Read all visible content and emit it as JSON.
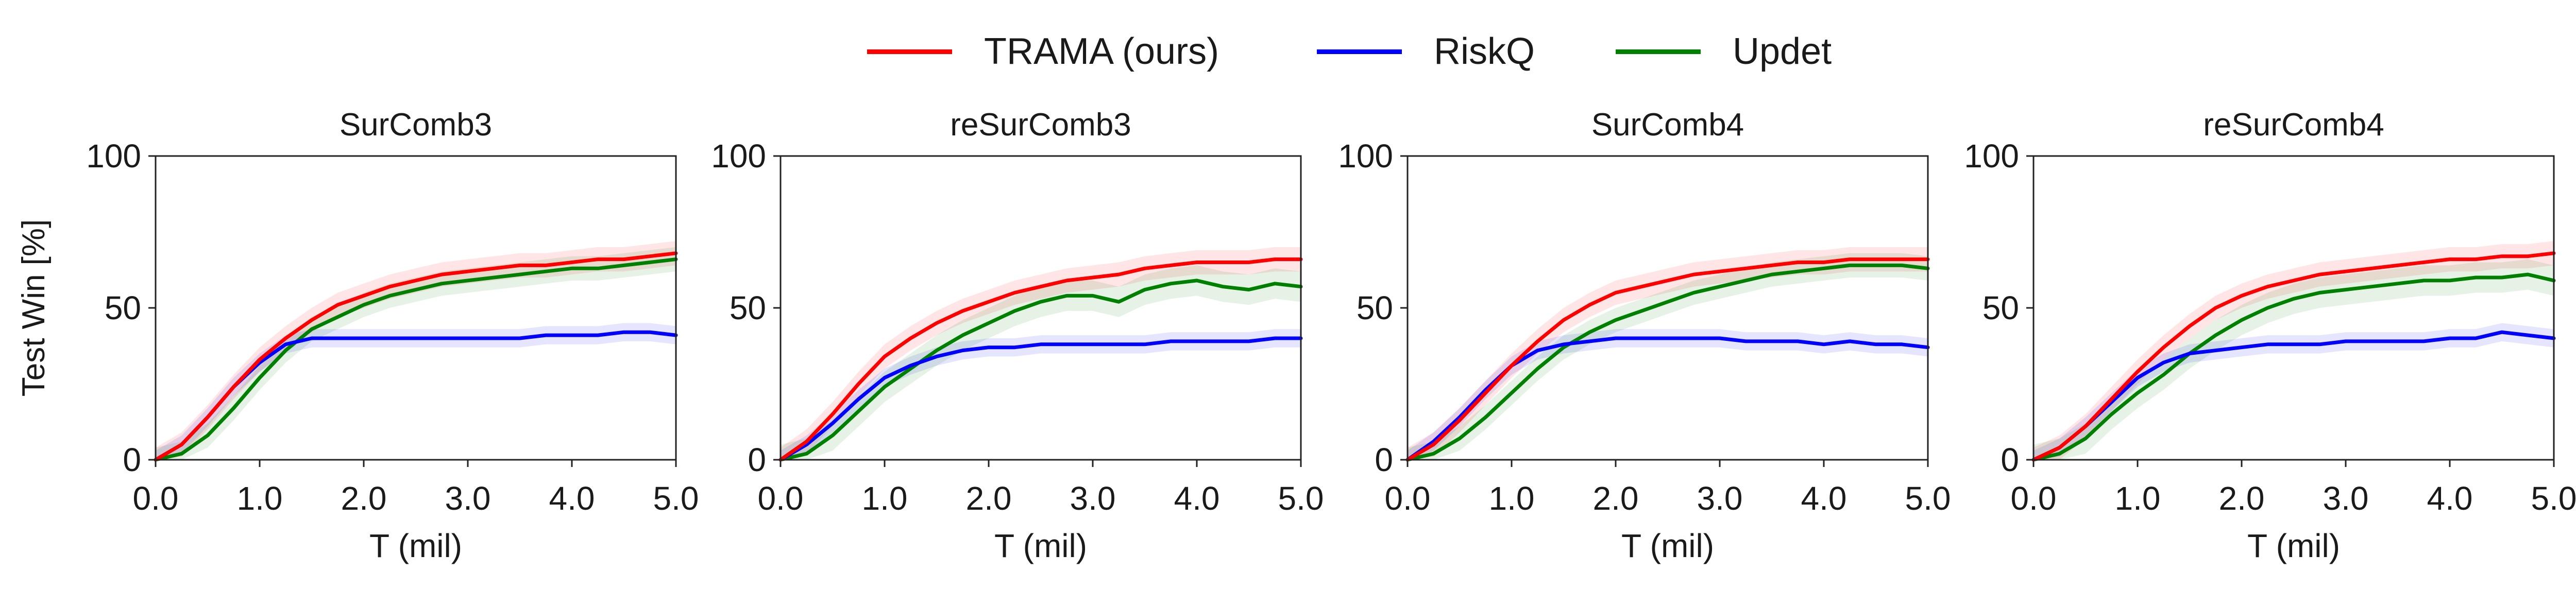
{
  "legend": [
    {
      "name": "TRAMA (ours)",
      "color": "#ff0000"
    },
    {
      "name": "RiskQ",
      "color": "#0000ff"
    },
    {
      "name": "Updet",
      "color": "#008000"
    }
  ],
  "colors": {
    "TRAMA (ours)": "#ff0000",
    "RiskQ": "#0000ff",
    "Updet": "#008000"
  },
  "chart_data": [
    {
      "type": "line",
      "title": "SurComb3",
      "xlabel": "T (mil)",
      "ylabel": "Test Win [%]",
      "xlim": [
        0,
        5
      ],
      "ylim": [
        0,
        100
      ],
      "xticks": [
        "0.0",
        "1.0",
        "2.0",
        "3.0",
        "4.0",
        "5.0"
      ],
      "yticks": [
        "0",
        "50",
        "100"
      ],
      "grid": false,
      "legend_position": "top-center (shared)",
      "x": [
        0.0,
        0.25,
        0.5,
        0.75,
        1.0,
        1.25,
        1.5,
        1.75,
        2.0,
        2.25,
        2.5,
        2.75,
        3.0,
        3.25,
        3.5,
        3.75,
        4.0,
        4.25,
        4.5,
        4.75,
        5.0
      ],
      "series": [
        {
          "name": "TRAMA (ours)",
          "values": [
            0,
            5,
            14,
            24,
            33,
            40,
            46,
            51,
            54,
            57,
            59,
            61,
            62,
            63,
            64,
            64,
            65,
            66,
            66,
            67,
            68
          ],
          "band": 4
        },
        {
          "name": "RiskQ",
          "values": [
            0,
            5,
            14,
            24,
            32,
            38,
            40,
            40,
            40,
            40,
            40,
            40,
            40,
            40,
            40,
            41,
            41,
            41,
            42,
            42,
            41
          ],
          "band": 3
        },
        {
          "name": "Updet",
          "values": [
            0,
            2,
            8,
            17,
            27,
            36,
            43,
            47,
            51,
            54,
            56,
            58,
            59,
            60,
            61,
            62,
            63,
            63,
            64,
            65,
            66
          ],
          "band": 4
        }
      ]
    },
    {
      "type": "line",
      "title": "reSurComb3",
      "xlabel": "T (mil)",
      "ylabel": "",
      "xlim": [
        0,
        5
      ],
      "ylim": [
        0,
        100
      ],
      "xticks": [
        "0.0",
        "1.0",
        "2.0",
        "3.0",
        "4.0",
        "5.0"
      ],
      "yticks": [
        "0",
        "50",
        "100"
      ],
      "grid": false,
      "x": [
        0.0,
        0.25,
        0.5,
        0.75,
        1.0,
        1.25,
        1.5,
        1.75,
        2.0,
        2.25,
        2.5,
        2.75,
        3.0,
        3.25,
        3.5,
        3.75,
        4.0,
        4.25,
        4.5,
        4.75,
        5.0
      ],
      "series": [
        {
          "name": "TRAMA (ours)",
          "values": [
            0,
            6,
            15,
            25,
            34,
            40,
            45,
            49,
            52,
            55,
            57,
            59,
            60,
            61,
            63,
            64,
            65,
            65,
            65,
            66,
            66
          ],
          "band": 4
        },
        {
          "name": "RiskQ",
          "values": [
            0,
            5,
            12,
            20,
            27,
            31,
            34,
            36,
            37,
            37,
            38,
            38,
            38,
            38,
            38,
            39,
            39,
            39,
            39,
            40,
            40
          ],
          "band": 3
        },
        {
          "name": "Updet",
          "values": [
            0,
            2,
            8,
            16,
            24,
            30,
            36,
            41,
            45,
            49,
            52,
            54,
            54,
            52,
            56,
            58,
            59,
            57,
            56,
            58,
            57
          ],
          "band": 5
        }
      ]
    },
    {
      "type": "line",
      "title": "SurComb4",
      "xlabel": "T (mil)",
      "ylabel": "",
      "xlim": [
        0,
        5
      ],
      "ylim": [
        0,
        100
      ],
      "xticks": [
        "0.0",
        "1.0",
        "2.0",
        "3.0",
        "4.0",
        "5.0"
      ],
      "yticks": [
        "0",
        "50",
        "100"
      ],
      "grid": false,
      "x": [
        0.0,
        0.25,
        0.5,
        0.75,
        1.0,
        1.25,
        1.5,
        1.75,
        2.0,
        2.25,
        2.5,
        2.75,
        3.0,
        3.25,
        3.5,
        3.75,
        4.0,
        4.25,
        4.5,
        4.75,
        5.0
      ],
      "series": [
        {
          "name": "TRAMA (ours)",
          "values": [
            0,
            5,
            13,
            22,
            31,
            39,
            46,
            51,
            55,
            57,
            59,
            61,
            62,
            63,
            64,
            65,
            65,
            66,
            66,
            66,
            66
          ],
          "band": 4
        },
        {
          "name": "RiskQ",
          "values": [
            0,
            6,
            14,
            23,
            31,
            36,
            38,
            39,
            40,
            40,
            40,
            40,
            40,
            39,
            39,
            39,
            38,
            39,
            38,
            38,
            37
          ],
          "band": 3
        },
        {
          "name": "Updet",
          "values": [
            0,
            2,
            7,
            14,
            22,
            30,
            37,
            42,
            46,
            49,
            52,
            55,
            57,
            59,
            61,
            62,
            63,
            64,
            64,
            64,
            63
          ],
          "band": 4
        }
      ]
    },
    {
      "type": "line",
      "title": "reSurComb4",
      "xlabel": "T (mil)",
      "ylabel": "",
      "xlim": [
        0,
        5
      ],
      "ylim": [
        0,
        100
      ],
      "xticks": [
        "0.0",
        "1.0",
        "2.0",
        "3.0",
        "4.0",
        "5.0"
      ],
      "yticks": [
        "0",
        "50",
        "100"
      ],
      "grid": false,
      "x": [
        0.0,
        0.25,
        0.5,
        0.75,
        1.0,
        1.25,
        1.5,
        1.75,
        2.0,
        2.25,
        2.5,
        2.75,
        3.0,
        3.25,
        3.5,
        3.75,
        4.0,
        4.25,
        4.5,
        4.75,
        5.0
      ],
      "series": [
        {
          "name": "TRAMA (ours)",
          "values": [
            0,
            4,
            11,
            20,
            29,
            37,
            44,
            50,
            54,
            57,
            59,
            61,
            62,
            63,
            64,
            65,
            66,
            66,
            67,
            67,
            68
          ],
          "band": 4
        },
        {
          "name": "RiskQ",
          "values": [
            0,
            4,
            11,
            19,
            27,
            32,
            35,
            36,
            37,
            38,
            38,
            38,
            39,
            39,
            39,
            39,
            40,
            40,
            42,
            41,
            40
          ],
          "band": 3
        },
        {
          "name": "Updet",
          "values": [
            0,
            2,
            7,
            15,
            22,
            28,
            35,
            41,
            46,
            50,
            53,
            55,
            56,
            57,
            58,
            59,
            59,
            60,
            60,
            61,
            59
          ],
          "band": 5
        }
      ]
    }
  ]
}
